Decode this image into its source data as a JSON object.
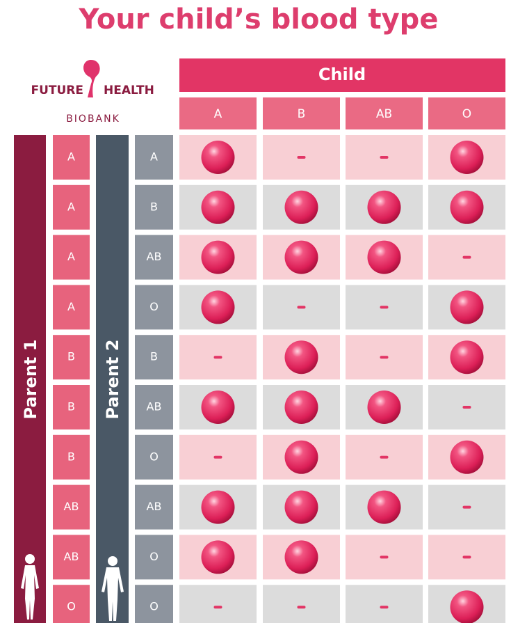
{
  "title": "Your child’s blood type",
  "logo": {
    "left": "FUTURE",
    "right": "HEALTH",
    "sub": "BIOBANK"
  },
  "table": {
    "header": "Child",
    "columns": [
      "A",
      "B",
      "AB",
      "O"
    ],
    "parent1_label": "Parent 1",
    "parent2_label": "Parent 2",
    "rows": [
      {
        "parent1": "A",
        "parent2": "A",
        "possible": [
          true,
          false,
          false,
          true
        ]
      },
      {
        "parent1": "A",
        "parent2": "B",
        "possible": [
          true,
          true,
          true,
          true
        ]
      },
      {
        "parent1": "A",
        "parent2": "AB",
        "possible": [
          true,
          true,
          true,
          false
        ]
      },
      {
        "parent1": "A",
        "parent2": "O",
        "possible": [
          true,
          false,
          false,
          true
        ]
      },
      {
        "parent1": "B",
        "parent2": "B",
        "possible": [
          false,
          true,
          false,
          true
        ]
      },
      {
        "parent1": "B",
        "parent2": "AB",
        "possible": [
          true,
          true,
          true,
          false
        ]
      },
      {
        "parent1": "B",
        "parent2": "O",
        "possible": [
          false,
          true,
          false,
          true
        ]
      },
      {
        "parent1": "AB",
        "parent2": "AB",
        "possible": [
          true,
          true,
          true,
          false
        ]
      },
      {
        "parent1": "AB",
        "parent2": "O",
        "possible": [
          true,
          true,
          false,
          false
        ]
      },
      {
        "parent1": "O",
        "parent2": "O",
        "possible": [
          false,
          false,
          false,
          true
        ]
      }
    ]
  }
}
